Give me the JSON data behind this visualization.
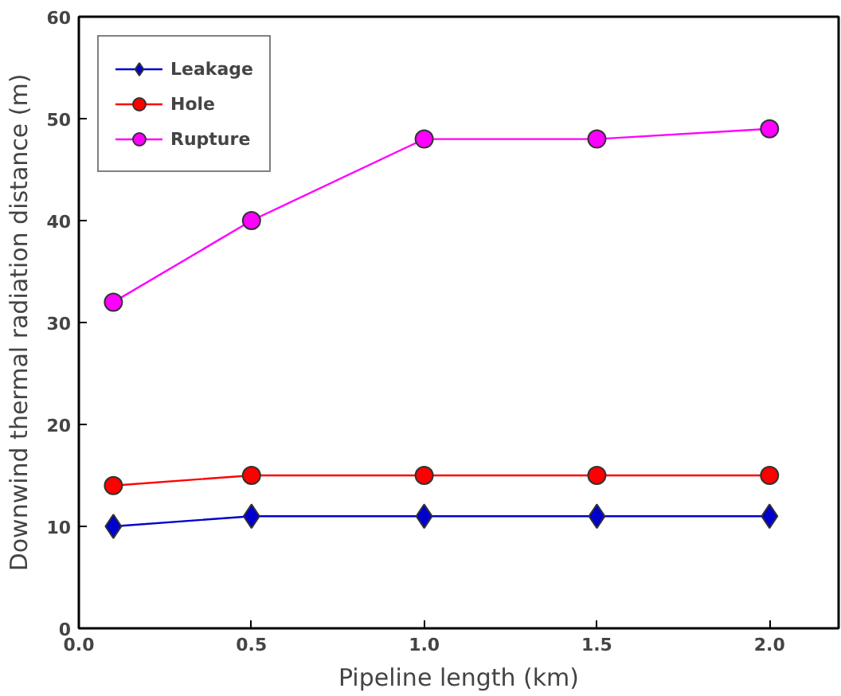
{
  "chart_data": {
    "type": "line",
    "xlabel": "Pipeline length (km)",
    "ylabel": "Downwind thermal radiation distance (m)",
    "x": [
      0.1,
      0.5,
      1.0,
      1.5,
      2.0
    ],
    "series": [
      {
        "name": "Leakage",
        "color": "#0000cc",
        "values": [
          10,
          11,
          11,
          11,
          11
        ],
        "marker": "diamond"
      },
      {
        "name": "Hole",
        "color": "#ff0000",
        "values": [
          14,
          15,
          15,
          15,
          15
        ],
        "marker": "circle"
      },
      {
        "name": "Rupture",
        "color": "#ff00ff",
        "values": [
          32,
          40,
          48,
          48,
          49
        ],
        "marker": "circle"
      }
    ],
    "xlim": [
      0,
      2.2
    ],
    "ylim": [
      0,
      60
    ],
    "xticks": [
      {
        "value": 0,
        "label": "0.0"
      },
      {
        "value": 0.5,
        "label": "0.5"
      },
      {
        "value": 1,
        "label": "1.0"
      },
      {
        "value": 1.5,
        "label": "1.5"
      },
      {
        "value": 2,
        "label": "2.0"
      }
    ],
    "yticks": [
      0,
      10,
      20,
      30,
      40,
      50,
      60
    ],
    "legend": "top left",
    "grid": false,
    "line_style": "solid"
  }
}
